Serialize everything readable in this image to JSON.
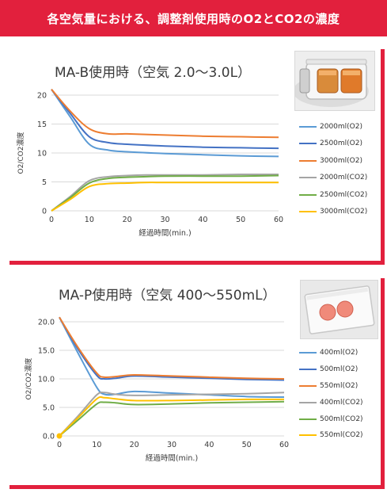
{
  "header": {
    "title": "各空気量における、調整剤使用時のO2とCO2の濃度"
  },
  "chart_data": [
    {
      "type": "line",
      "title": "MA-B使用時（空気 2.0〜3.0L）",
      "xlabel": "経過時間(min.)",
      "ylabel": "O2/CO2濃度",
      "xlim": [
        0,
        60
      ],
      "ylim": [
        0,
        20
      ],
      "xticks": [
        0,
        10,
        20,
        30,
        40,
        50,
        60
      ],
      "yticks": [
        0,
        5,
        10,
        15,
        20
      ],
      "ytick_labels": [
        "0",
        "5",
        "10",
        "15",
        "20"
      ],
      "grid": "horizontal",
      "legend": "right",
      "image_caption": "",
      "series": [
        {
          "name": "2000ml(O2)",
          "color": "#5b9bd5",
          "x": [
            0,
            5,
            10,
            15,
            20,
            30,
            40,
            50,
            60
          ],
          "values": [
            21,
            16.2,
            11.5,
            10.5,
            10.2,
            9.9,
            9.7,
            9.5,
            9.4
          ]
        },
        {
          "name": "2500ml(O2)",
          "color": "#4472c4",
          "x": [
            0,
            5,
            10,
            15,
            20,
            30,
            40,
            50,
            60
          ],
          "values": [
            21,
            16.8,
            12.8,
            11.8,
            11.5,
            11.2,
            11.0,
            10.9,
            10.8
          ]
        },
        {
          "name": "3000ml(O2)",
          "color": "#ed7d31",
          "x": [
            0,
            5,
            10,
            15,
            20,
            30,
            40,
            50,
            60
          ],
          "values": [
            21,
            17.2,
            14.2,
            13.3,
            13.3,
            13.1,
            12.9,
            12.8,
            12.7
          ]
        },
        {
          "name": "2000ml(CO2)",
          "color": "#a5a5a5",
          "x": [
            0,
            5,
            10,
            15,
            20,
            25,
            30,
            40,
            50,
            60
          ],
          "values": [
            0,
            2.5,
            5.2,
            5.9,
            6.1,
            6.2,
            6.2,
            6.2,
            6.3,
            6.3
          ]
        },
        {
          "name": "2500ml(CO2)",
          "color": "#70ad47",
          "x": [
            0,
            5,
            10,
            15,
            20,
            25,
            30,
            40,
            50,
            60
          ],
          "values": [
            0,
            2.3,
            4.8,
            5.6,
            5.8,
            5.9,
            6.0,
            6.0,
            6.0,
            6.1
          ]
        },
        {
          "name": "3000ml(CO2)",
          "color": "#ffc000",
          "x": [
            0,
            5,
            10,
            15,
            20,
            25,
            30,
            40,
            50,
            60
          ],
          "values": [
            0,
            2.0,
            4.2,
            4.7,
            4.8,
            4.9,
            4.9,
            4.9,
            4.9,
            4.9
          ]
        }
      ]
    },
    {
      "type": "line",
      "title": "MA-P使用時（空気 400〜550mL）",
      "xlabel": "経過時間(min.)",
      "ylabel": "O2/CO2濃度",
      "xlim": [
        0,
        60
      ],
      "ylim": [
        0,
        20
      ],
      "xticks": [
        0,
        10,
        20,
        30,
        40,
        50,
        60
      ],
      "yticks": [
        0,
        5,
        10,
        15,
        20
      ],
      "ytick_labels": [
        "0.0",
        "5.0",
        "10.0",
        "15.0",
        "20.0"
      ],
      "grid": "horizontal",
      "legend": "right",
      "image_caption": "",
      "series": [
        {
          "name": "400ml(O2)",
          "color": "#5b9bd5",
          "x": [
            0,
            5,
            10,
            12,
            15,
            20,
            30,
            40,
            50,
            60
          ],
          "values": [
            20.8,
            14.5,
            8.5,
            7.3,
            7.3,
            7.8,
            7.5,
            7.2,
            6.9,
            6.8
          ]
        },
        {
          "name": "500ml(O2)",
          "color": "#4472c4",
          "x": [
            0,
            5,
            10,
            12,
            15,
            20,
            30,
            40,
            50,
            60
          ],
          "values": [
            20.8,
            15.2,
            10.6,
            10.0,
            10.1,
            10.5,
            10.3,
            10.1,
            9.9,
            9.8
          ]
        },
        {
          "name": "550ml(O2)",
          "color": "#ed7d31",
          "x": [
            0,
            5,
            10,
            12,
            15,
            20,
            30,
            40,
            50,
            60
          ],
          "values": [
            20.8,
            15.5,
            11.0,
            10.3,
            10.4,
            10.7,
            10.5,
            10.3,
            10.1,
            10.0
          ]
        },
        {
          "name": "400ml(CO2)",
          "color": "#a5a5a5",
          "x": [
            0,
            5,
            10,
            12,
            15,
            20,
            30,
            40,
            50,
            60
          ],
          "values": [
            0,
            3.5,
            7.2,
            7.6,
            7.3,
            7.1,
            7.2,
            7.3,
            7.4,
            7.6
          ]
        },
        {
          "name": "500ml(CO2)",
          "color": "#70ad47",
          "x": [
            0,
            5,
            10,
            12,
            15,
            20,
            30,
            40,
            50,
            60
          ],
          "values": [
            0,
            2.8,
            5.6,
            5.9,
            5.8,
            5.5,
            5.6,
            5.8,
            5.9,
            6.0
          ]
        },
        {
          "name": "550ml(CO2)",
          "color": "#ffc000",
          "x": [
            0,
            5,
            10,
            12,
            15,
            20,
            30,
            40,
            50,
            60
          ],
          "values": [
            0,
            3.2,
            6.5,
            6.7,
            6.5,
            6.2,
            6.2,
            6.3,
            6.4,
            6.4
          ]
        }
      ]
    }
  ]
}
